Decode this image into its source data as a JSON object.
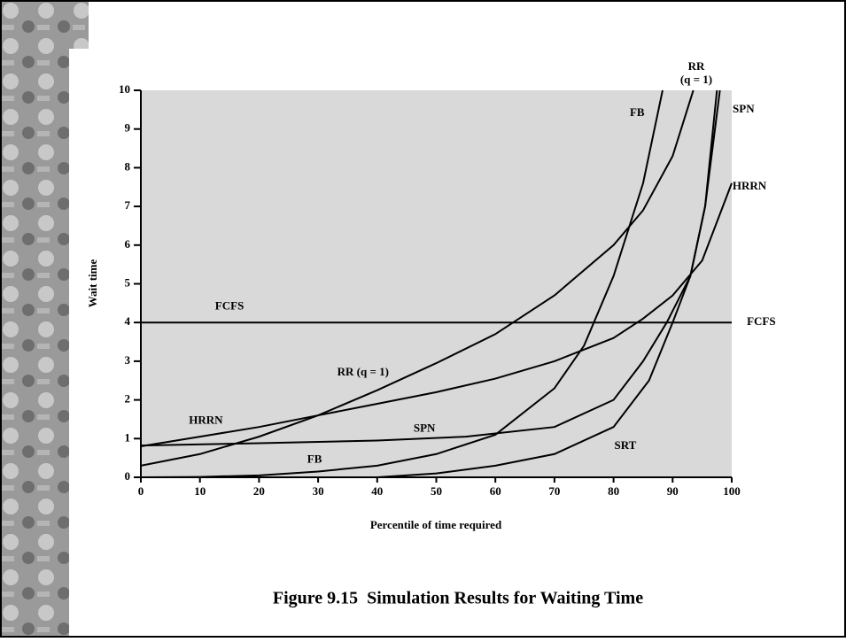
{
  "chart_data": {
    "type": "line",
    "caption": "Figure 9.15  Simulation Results for Waiting Time",
    "xlabel": "Percentile of time required",
    "ylabel": "Wait time",
    "xlim": [
      0,
      100
    ],
    "ylim": [
      0,
      10
    ],
    "xticks": [
      0,
      10,
      20,
      30,
      40,
      50,
      60,
      70,
      80,
      90,
      100
    ],
    "yticks": [
      0,
      1,
      2,
      3,
      4,
      5,
      6,
      7,
      8,
      9,
      10
    ],
    "background": "#d9d9d9",
    "series": [
      {
        "name": "FCFS",
        "color": "#000000",
        "x": [
          0,
          100
        ],
        "values": [
          4,
          4
        ]
      },
      {
        "name": "HRRN",
        "color": "#000000",
        "x": [
          0,
          10,
          20,
          30,
          40,
          50,
          60,
          70,
          80,
          85,
          90,
          95,
          100
        ],
        "values": [
          0.8,
          1.05,
          1.3,
          1.6,
          1.9,
          2.2,
          2.55,
          3.0,
          3.6,
          4.1,
          4.7,
          5.6,
          7.6
        ]
      },
      {
        "name": "RR (q = 1)",
        "color": "#000000",
        "x": [
          0,
          10,
          20,
          30,
          40,
          50,
          60,
          70,
          80,
          85,
          90,
          93.5
        ],
        "values": [
          0.3,
          0.6,
          1.05,
          1.6,
          2.25,
          2.95,
          3.7,
          4.7,
          6.0,
          6.9,
          8.3,
          10
        ]
      },
      {
        "name": "FB",
        "color": "#000000",
        "x": [
          0,
          10,
          20,
          30,
          40,
          50,
          60,
          70,
          75,
          80,
          85,
          88.3
        ],
        "values": [
          0,
          0.01,
          0.05,
          0.15,
          0.3,
          0.6,
          1.1,
          2.3,
          3.4,
          5.2,
          7.6,
          10
        ]
      },
      {
        "name": "SPN",
        "color": "#000000",
        "x": [
          0,
          20,
          40,
          55,
          70,
          80,
          85,
          89,
          93,
          95.5,
          97.5
        ],
        "values": [
          0.82,
          0.88,
          0.95,
          1.05,
          1.3,
          2.0,
          3.0,
          4.0,
          5.2,
          7.0,
          10
        ]
      },
      {
        "name": "SRT",
        "color": "#000000",
        "x": [
          0,
          40,
          50,
          60,
          70,
          80,
          86,
          90,
          93,
          95.5,
          98
        ],
        "values": [
          0,
          0,
          0.1,
          0.3,
          0.6,
          1.3,
          2.5,
          4.0,
          5.2,
          7.0,
          10
        ]
      }
    ],
    "annotations": [
      {
        "text": "FCFS",
        "x": 15,
        "y": 4.4
      },
      {
        "text": "FCFS",
        "x": 105,
        "y": 4.0
      },
      {
        "text": "RR (q = 1)",
        "x": 37.6,
        "y": 2.7
      },
      {
        "text": "RR",
        "x": 94,
        "y": 10.6
      },
      {
        "text": "(q = 1)",
        "x": 94,
        "y": 10.25
      },
      {
        "text": "FB",
        "x": 84,
        "y": 9.4
      },
      {
        "text": "FB",
        "x": 29.4,
        "y": 0.45
      },
      {
        "text": "SPN",
        "x": 102,
        "y": 9.5
      },
      {
        "text": "SPN",
        "x": 48,
        "y": 1.25
      },
      {
        "text": "HRRN",
        "x": 11,
        "y": 1.45
      },
      {
        "text": "HRRN",
        "x": 103,
        "y": 7.5
      },
      {
        "text": "SRT",
        "x": 82,
        "y": 0.8
      }
    ]
  }
}
